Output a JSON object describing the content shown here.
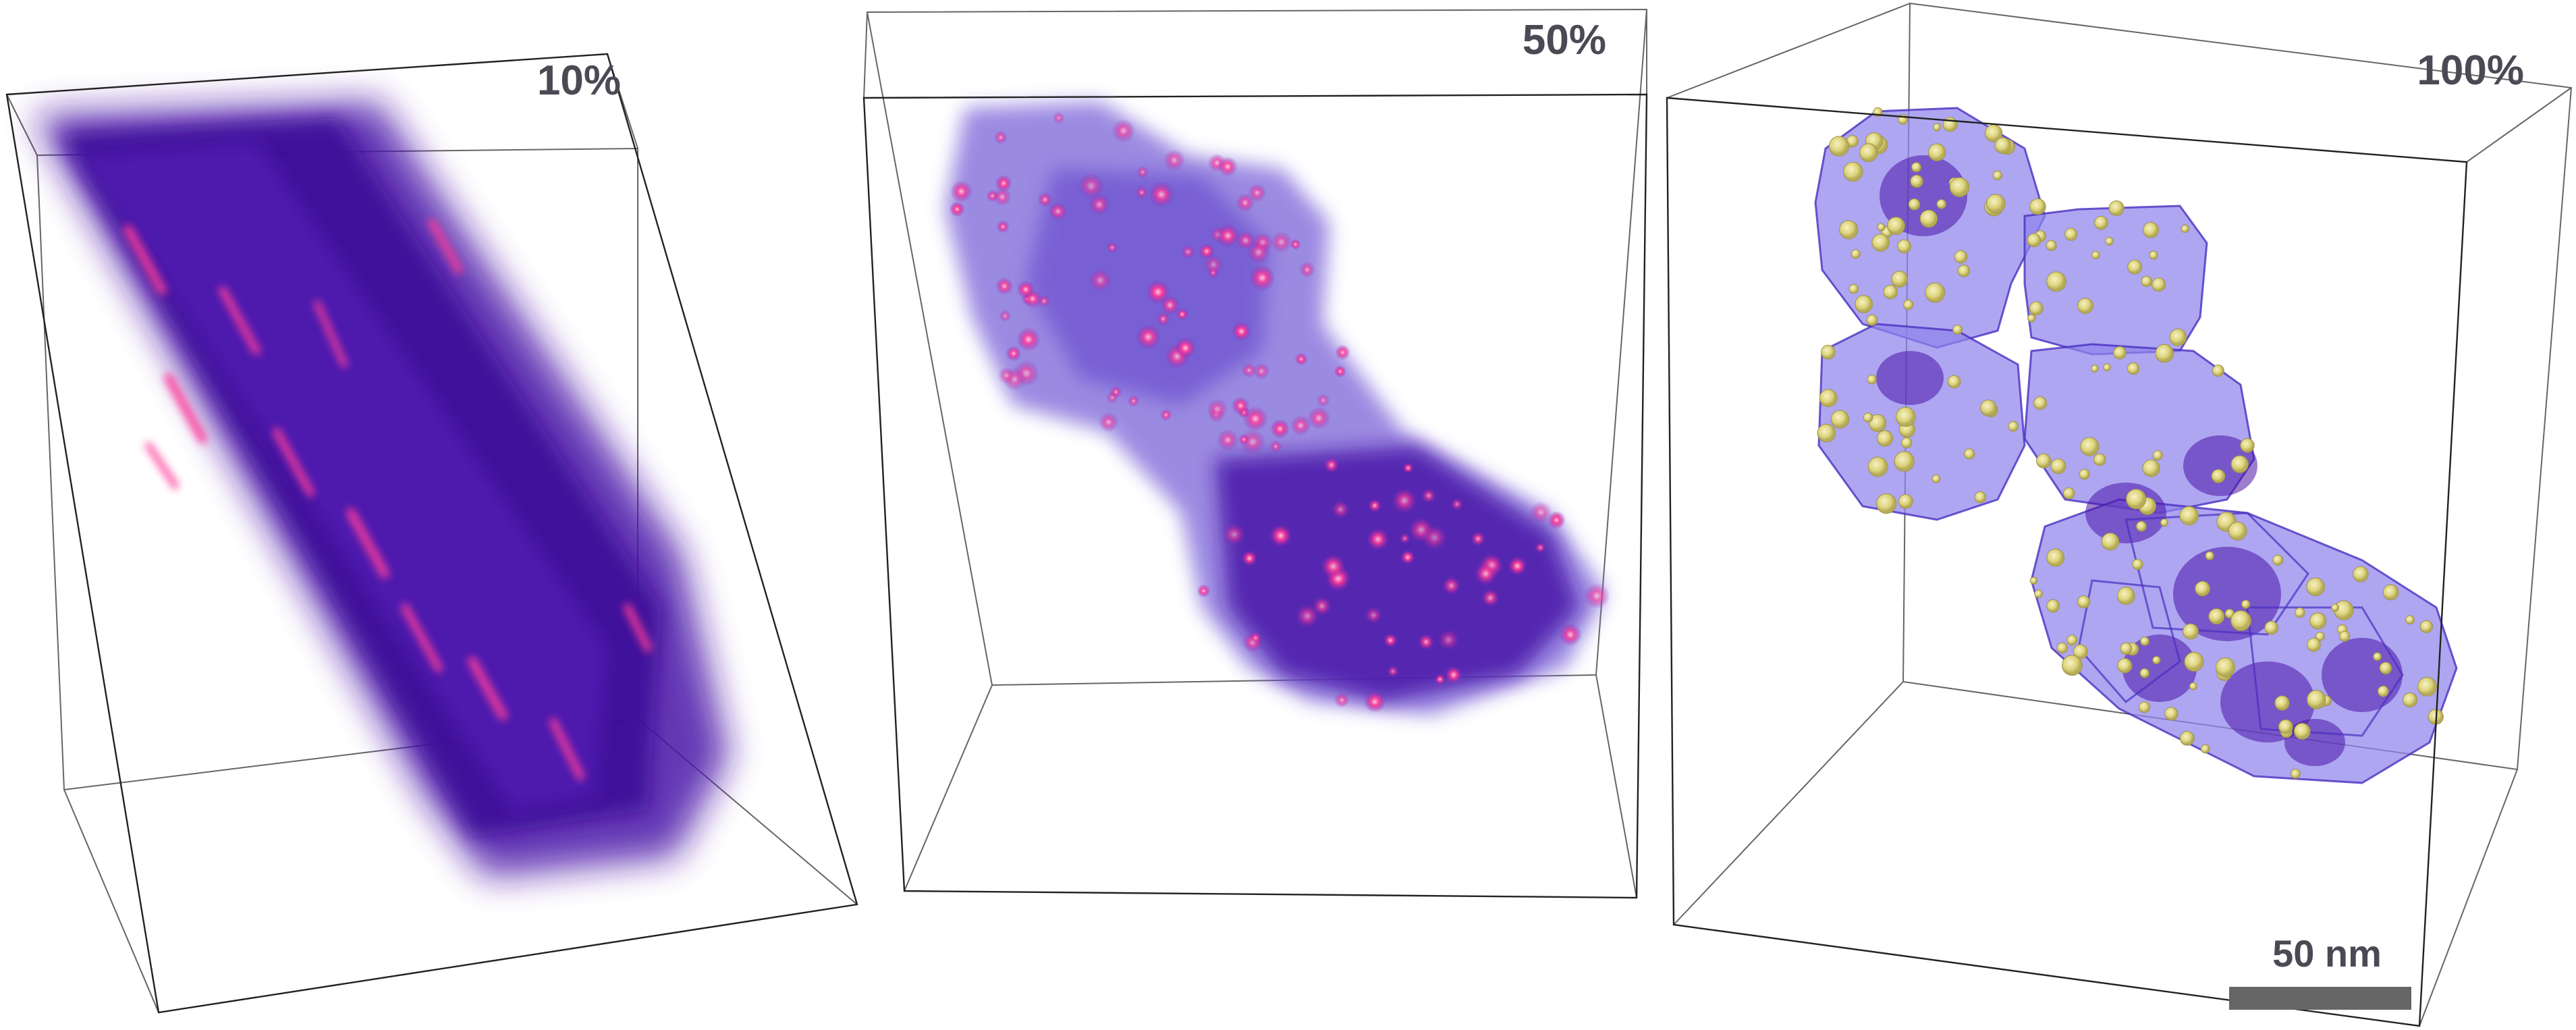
{
  "panels": [
    {
      "label": "10%"
    },
    {
      "label": "50%"
    },
    {
      "label": "100%"
    }
  ],
  "scale_bar": {
    "label": "50 nm"
  },
  "colors": {
    "background": "#ffffff",
    "box_edges": "#222222",
    "volume_dark": "#4a14a8",
    "volume_light": "#8a78e0",
    "hotspot": "#ff3c9a",
    "particle": "#e4dc86",
    "label_text": "#4a4a55",
    "scale_bar": "#666666"
  }
}
